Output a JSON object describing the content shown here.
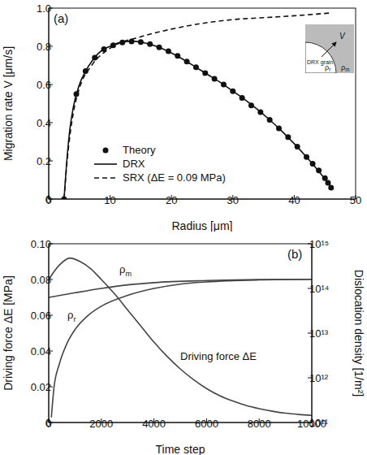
{
  "chart_data": [
    {
      "type": "line",
      "title": "(a)",
      "xlabel": "Radius [μm]",
      "ylabel": "Migration rate V [μm/s]",
      "xlim": [
        0,
        50
      ],
      "xticks": [
        0,
        10,
        20,
        30,
        40,
        50
      ],
      "ylim": [
        0,
        1
      ],
      "yticks": [
        0,
        0.2,
        0.4,
        0.6,
        0.8,
        {
          "value": 1,
          "label": "1.0"
        }
      ],
      "legend": "lower left",
      "annotations": [
        "V",
        "DRX grain",
        "ρr",
        "ρm"
      ],
      "series": [
        {
          "name": "Theory",
          "type": "scatter",
          "marker": "circle",
          "color": "#111111",
          "x": [
            2.5,
            4.5,
            6,
            7.5,
            9,
            10.5,
            12,
            13.5,
            15,
            16.5,
            18,
            19.5,
            21,
            22.5,
            24,
            25.5,
            27,
            28.5,
            30,
            31.5,
            33,
            34.5,
            36,
            37.5,
            39,
            40.5,
            42,
            43,
            44,
            45,
            45.5,
            46
          ],
          "values": [
            0,
            0.55,
            0.67,
            0.74,
            0.785,
            0.805,
            0.82,
            0.826,
            0.822,
            0.812,
            0.795,
            0.775,
            0.75,
            0.72,
            0.69,
            0.66,
            0.63,
            0.6,
            0.565,
            0.53,
            0.49,
            0.455,
            0.415,
            0.37,
            0.325,
            0.275,
            0.22,
            0.185,
            0.15,
            0.11,
            0.085,
            0.06
          ]
        },
        {
          "name": "DRX",
          "type": "line",
          "line_style": "solid",
          "color": "#111111",
          "x": [
            2.5,
            3,
            3.5,
            4,
            5,
            6,
            7,
            8,
            9,
            10,
            11,
            12,
            13,
            14,
            15,
            16,
            18,
            20,
            22,
            24,
            26,
            28,
            30,
            32,
            34,
            36,
            38,
            40,
            42,
            44,
            45,
            46
          ],
          "values": [
            0,
            0.22,
            0.38,
            0.48,
            0.6,
            0.67,
            0.72,
            0.76,
            0.785,
            0.8,
            0.815,
            0.822,
            0.826,
            0.826,
            0.822,
            0.815,
            0.795,
            0.765,
            0.73,
            0.69,
            0.65,
            0.61,
            0.565,
            0.52,
            0.47,
            0.415,
            0.355,
            0.29,
            0.22,
            0.145,
            0.105,
            0.06
          ]
        },
        {
          "name": "SRX (ΔE = 0.09 MPa)",
          "type": "line",
          "line_style": "dashed",
          "color": "#111111",
          "x": [
            2.5,
            3,
            4,
            5,
            7,
            10,
            15,
            20,
            25,
            30,
            35,
            40,
            46
          ],
          "values": [
            0,
            0.2,
            0.45,
            0.58,
            0.7,
            0.79,
            0.85,
            0.89,
            0.92,
            0.94,
            0.95,
            0.96,
            0.975
          ]
        }
      ]
    },
    {
      "type": "line",
      "title": "(b)",
      "xlabel": "Time step",
      "ylabel": "Driving force ΔE [MPa]",
      "y2label": "Dislocation density [1/m²]",
      "xlim": [
        0,
        10000
      ],
      "xticks": [
        0,
        2000,
        4000,
        6000,
        8000,
        10000
      ],
      "ylim": [
        0,
        0.1
      ],
      "yticks": [
        0,
        0.02,
        0.04,
        0.06,
        0.08,
        {
          "value": 0.1,
          "label": "0.10"
        }
      ],
      "y2lim": [
        100000000000,
        1000000000000000
      ],
      "log": "y2",
      "y2ticks": [
        {
          "value": 100000000000,
          "label": "10¹¹"
        },
        {
          "value": 1000000000000,
          "label": "10¹²"
        },
        {
          "value": 10000000000000,
          "label": "10¹³"
        },
        {
          "value": 100000000000000,
          "label": "10¹⁴"
        },
        {
          "value": 1000000000000000,
          "label": "10¹⁵"
        }
      ],
      "series": [
        {
          "name": "Driving force ΔE",
          "axis": "y",
          "color": "#444444",
          "x": [
            0,
            400,
            800,
            1200,
            1600,
            2000,
            2500,
            3000,
            3500,
            4000,
            4500,
            5000,
            5500,
            6000,
            6500,
            7000,
            7500,
            8000,
            8500,
            9000,
            9500,
            10000
          ],
          "values": [
            0.08,
            0.088,
            0.092,
            0.09,
            0.086,
            0.08,
            0.072,
            0.063,
            0.054,
            0.045,
            0.037,
            0.03,
            0.024,
            0.019,
            0.015,
            0.012,
            0.0095,
            0.0077,
            0.0063,
            0.0052,
            0.0045,
            0.004
          ]
        },
        {
          "name": "ρm",
          "axis": "y2",
          "color": "#444444",
          "x": [
            0,
            1000,
            2000,
            3000,
            4000,
            6000,
            8000,
            10000
          ],
          "values": [
            63000000000000,
            80000000000000,
            100000000000000,
            120000000000000,
            135000000000000,
            150000000000000,
            158000000000000,
            160000000000000
          ]
        },
        {
          "name": "ρr",
          "axis": "y2",
          "color": "#444444",
          "x": [
            100,
            200,
            400,
            700,
            1000,
            1500,
            2000,
            3000,
            4000,
            5000,
            6000,
            8000,
            10000
          ],
          "values": [
            130000000000,
            600000000000,
            2000000000000,
            6000000000000,
            12000000000000,
            25000000000000,
            40000000000000,
            70000000000000,
            100000000000000,
            125000000000000,
            140000000000000,
            155000000000000,
            160000000000000
          ]
        }
      ]
    }
  ]
}
